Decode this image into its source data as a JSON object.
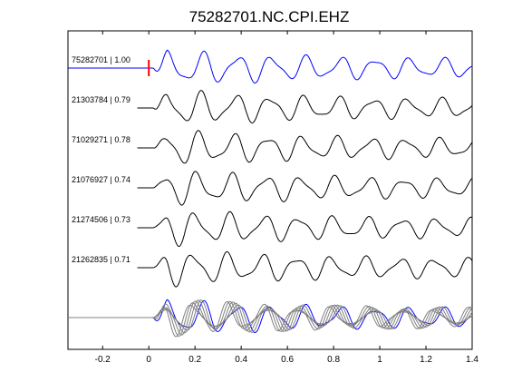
{
  "chart_data": {
    "type": "line",
    "title": "75282701.NC.CPI.EHZ",
    "xlabel": "",
    "ylabel": "",
    "xlim": [
      -0.35,
      1.4
    ],
    "grid": false,
    "legend": "none",
    "x_ticks": [
      -0.2,
      0,
      0.2,
      0.4,
      0.6,
      0.8,
      1,
      1.2,
      1.4
    ],
    "x_tick_labels": [
      "-0.2",
      "0",
      "0.2",
      "0.4",
      "0.6",
      "0.8",
      "1",
      "1.2",
      "1.4"
    ],
    "pick_marker": {
      "x": 0,
      "color": "#ff0000"
    },
    "reference_color": "#0000ff",
    "trace_color": "#000000",
    "overlay_color": "#808080",
    "series": [
      {
        "name": "75282701 | 1.00",
        "event_id": "75282701",
        "correlation": 1.0,
        "color": "#0000ff",
        "reference": true
      },
      {
        "name": "21303784 | 0.79",
        "event_id": "21303784",
        "correlation": 0.79,
        "color": "#000000",
        "reference": false
      },
      {
        "name": "71029271 | 0.78",
        "event_id": "71029271",
        "correlation": 0.78,
        "color": "#000000",
        "reference": false
      },
      {
        "name": "21076927 | 0.74",
        "event_id": "21076927",
        "correlation": 0.74,
        "color": "#000000",
        "reference": false
      },
      {
        "name": "21274506 | 0.73",
        "event_id": "21274506",
        "correlation": 0.73,
        "color": "#000000",
        "reference": false
      },
      {
        "name": "21262835 | 0.71",
        "event_id": "21262835",
        "correlation": 0.71,
        "color": "#000000",
        "reference": false
      }
    ]
  }
}
